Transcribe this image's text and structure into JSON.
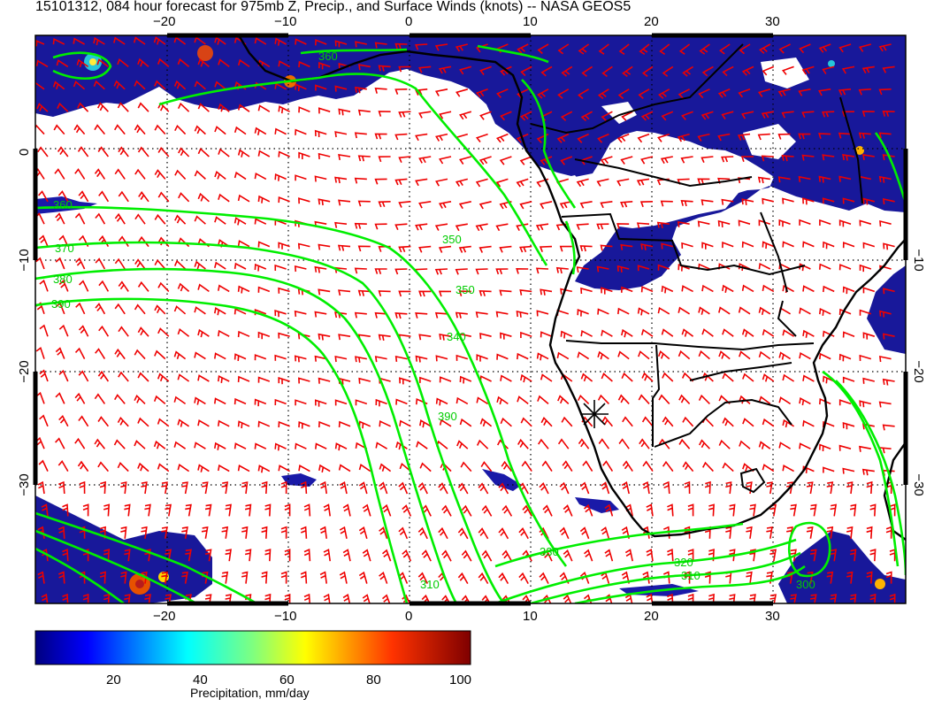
{
  "title": "15101312, 084 hour forecast for 975mb Z, Precip., and Surface Winds (knots) -- NASA GEOS5",
  "map": {
    "lon_ticks": [
      "−20",
      "−10",
      "0",
      "10",
      "20",
      "30"
    ],
    "lat_ticks": [
      "0",
      "−10",
      "−20",
      "−30"
    ],
    "contour_labels": [
      "360",
      "370",
      "380",
      "390",
      "350",
      "350",
      "340",
      "330",
      "320",
      "310",
      "300",
      "310",
      "390",
      "360"
    ],
    "colors": {
      "contour": "#00ee00",
      "wind_barb": "#ee0000",
      "coast": "#000000",
      "precip_light": "#1a1aa8",
      "precip_dark": "#0b0b6e"
    }
  },
  "colorbar": {
    "tick_labels": [
      "20",
      "40",
      "60",
      "80",
      "100"
    ],
    "label": "Precipitation, mm/day",
    "colormap": "jet"
  }
}
